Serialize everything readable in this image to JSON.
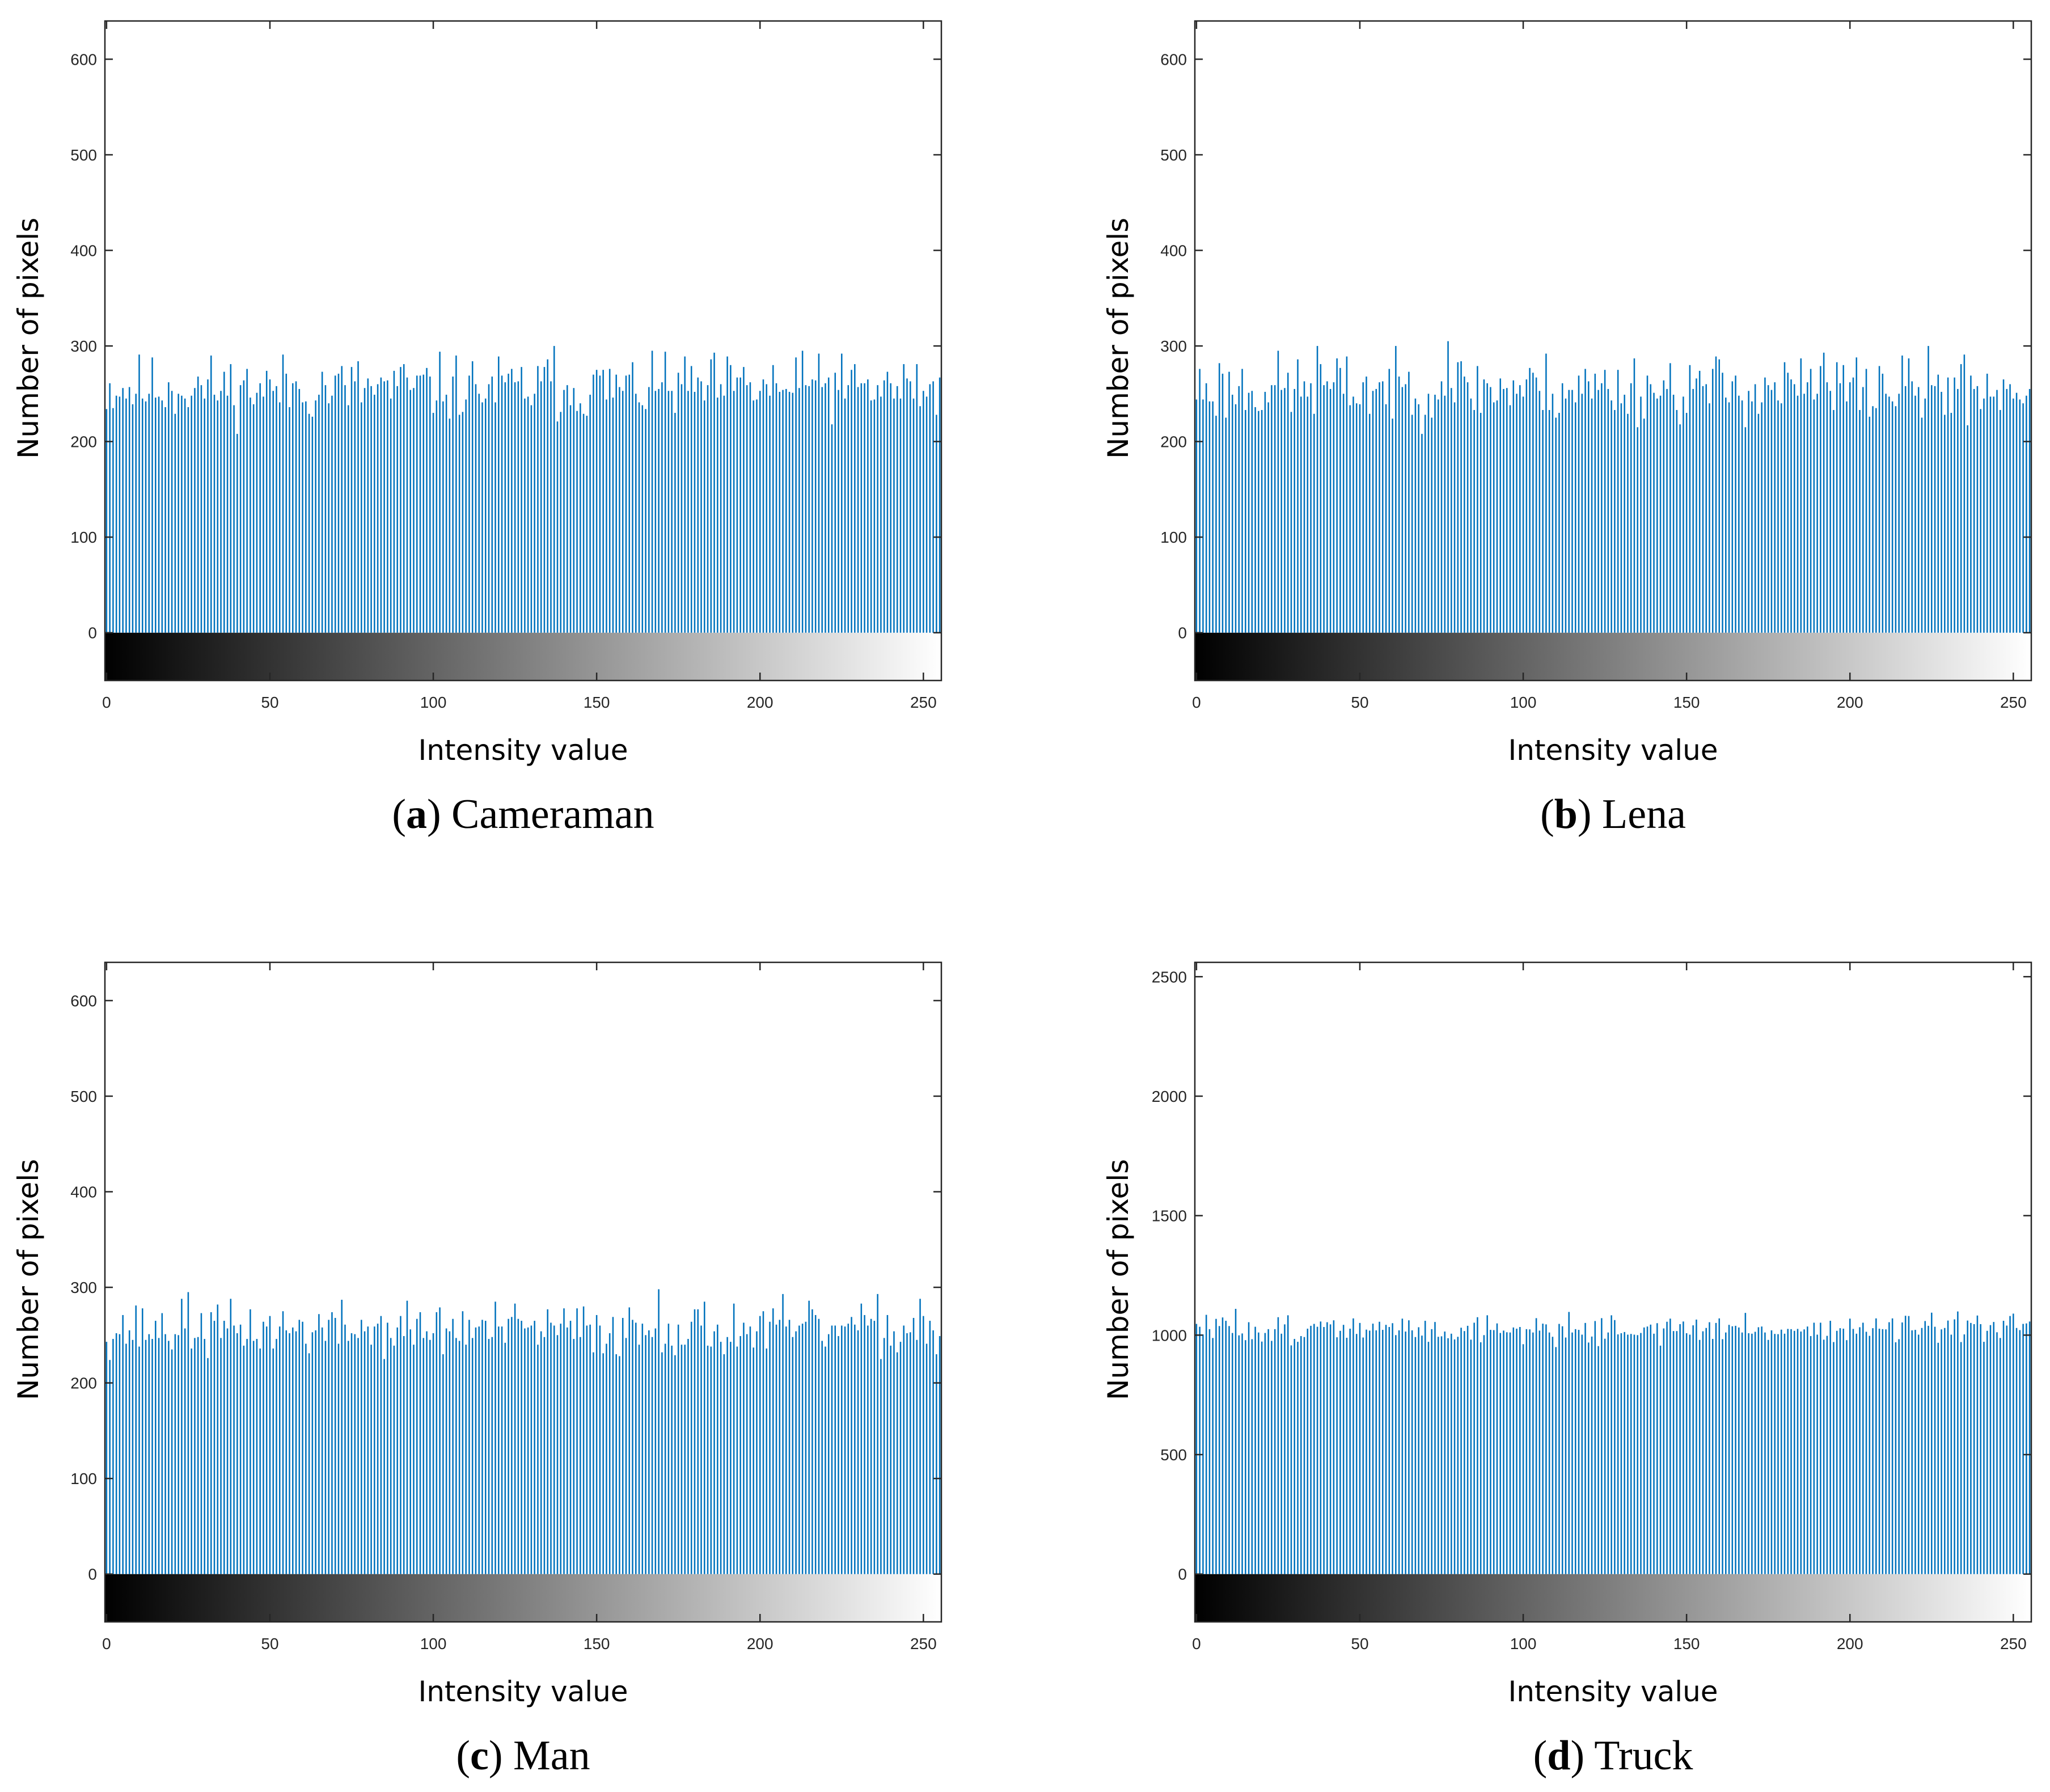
{
  "figure": {
    "bar_color": "#0072BD",
    "axis_color": "#262626"
  },
  "chart_data": [
    {
      "type": "bar",
      "caption_letter": "a",
      "caption_name": "Cameraman",
      "xlabel": "Intensity value",
      "ylabel": "Number of pixels",
      "xlim": [
        0,
        255
      ],
      "ylim": [
        -50,
        640
      ],
      "xticks": [
        "0",
        "50",
        "100",
        "150",
        "200",
        "250"
      ],
      "yticks": [
        "0",
        "100",
        "200",
        "300",
        "400",
        "500",
        "600"
      ],
      "colorbar": "grayscale 0-255",
      "approx_mean": 256,
      "approx_range": [
        205,
        300
      ],
      "notable_peaks": [
        {
          "x": 137,
          "y": 300
        },
        {
          "x": 171,
          "y": 294
        },
        {
          "x": 218,
          "y": 292
        }
      ],
      "seed": 11
    },
    {
      "type": "bar",
      "caption_letter": "b",
      "caption_name": "Lena",
      "xlabel": "Intensity value",
      "ylabel": "Number of pixels",
      "xlim": [
        0,
        255
      ],
      "ylim": [
        -50,
        640
      ],
      "xticks": [
        "0",
        "50",
        "100",
        "150",
        "200",
        "250"
      ],
      "yticks": [
        "0",
        "100",
        "200",
        "300",
        "400",
        "500",
        "600"
      ],
      "colorbar": "grayscale 0-255",
      "approx_mean": 256,
      "approx_range": [
        205,
        305
      ],
      "notable_peaks": [
        {
          "x": 37,
          "y": 300
        },
        {
          "x": 77,
          "y": 305
        },
        {
          "x": 192,
          "y": 293
        }
      ],
      "seed": 23
    },
    {
      "type": "bar",
      "caption_letter": "c",
      "caption_name": "Man",
      "xlabel": "Intensity value",
      "ylabel": "Number of pixels",
      "xlim": [
        0,
        255
      ],
      "ylim": [
        -50,
        640
      ],
      "xticks": [
        "0",
        "50",
        "100",
        "150",
        "200",
        "250"
      ],
      "yticks": [
        "0",
        "100",
        "200",
        "300",
        "400",
        "500",
        "600"
      ],
      "colorbar": "grayscale 0-255",
      "approx_mean": 256,
      "approx_range": [
        220,
        298
      ],
      "notable_peaks": [
        {
          "x": 25,
          "y": 295
        },
        {
          "x": 169,
          "y": 298
        },
        {
          "x": 249,
          "y": 288
        }
      ],
      "seed": 37
    },
    {
      "type": "bar",
      "caption_letter": "d",
      "caption_name": "Truck",
      "xlabel": "Intensity value",
      "ylabel": "Number of pixels",
      "xlim": [
        0,
        255
      ],
      "ylim": [
        -200,
        2560
      ],
      "xticks": [
        "0",
        "50",
        "100",
        "150",
        "200",
        "250"
      ],
      "yticks": [
        "0",
        "500",
        "1000",
        "1500",
        "2000",
        "2500"
      ],
      "colorbar": "grayscale 0-255",
      "approx_mean": 1024,
      "approx_range": [
        950,
        1110
      ],
      "notable_peaks": [
        {
          "x": 3,
          "y": 1085
        },
        {
          "x": 12,
          "y": 1110
        },
        {
          "x": 250,
          "y": 1090
        }
      ],
      "seed": 51
    }
  ]
}
